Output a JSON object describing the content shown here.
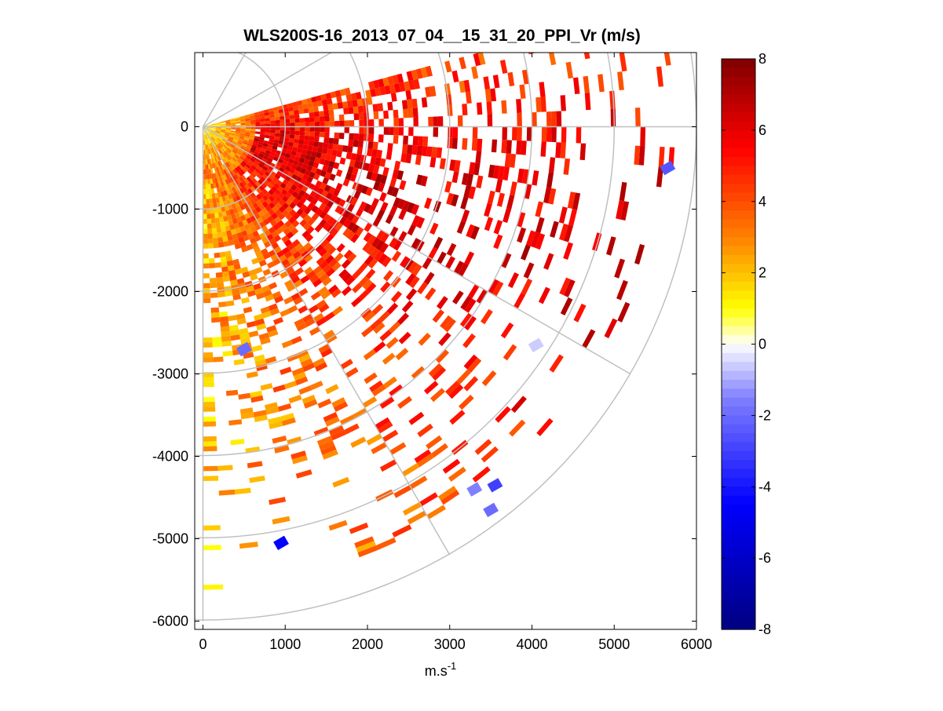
{
  "chart_data": {
    "type": "heatmap",
    "subtype": "ppi_radar_scan",
    "title": "WLS200S-16_2013_07_04__15_31_20_PPI_Vr (m/s)",
    "xlabel": "m.s",
    "xlabel_superscript": "-1",
    "ylabel": "",
    "xlim": [
      -100,
      6000
    ],
    "ylim": [
      -6100,
      900
    ],
    "xticks": [
      0,
      1000,
      2000,
      3000,
      4000,
      5000,
      6000
    ],
    "yticks": [
      0,
      -1000,
      -2000,
      -3000,
      -4000,
      -5000,
      -6000
    ],
    "xtick_labels": [
      "0",
      "1000",
      "2000",
      "3000",
      "4000",
      "5000",
      "6000"
    ],
    "ytick_labels": [
      "0",
      "-1000",
      "-2000",
      "-3000",
      "-4000",
      "-5000",
      "-6000"
    ],
    "grid": {
      "range_rings_m": [
        1000,
        2000,
        3000,
        4000,
        5000,
        6000
      ],
      "azimuth_spokes_deg": [
        0,
        -30,
        -60,
        -90,
        30,
        60
      ]
    },
    "colorbar": {
      "min": -8,
      "max": 8,
      "ticks": [
        8,
        6,
        4,
        2,
        0,
        -2,
        -4,
        -6,
        -8
      ],
      "tick_labels": [
        "8",
        "6",
        "4",
        "2",
        "0",
        "-2",
        "-4",
        "-6",
        "-8"
      ],
      "colormap": "blue-white-yellow-red",
      "stops": [
        "#000080",
        "#0000ff",
        "#8080ff",
        "#ffffff",
        "#ffff00",
        "#ff8000",
        "#ff0000",
        "#800000"
      ]
    },
    "scan_sector_deg": [
      -90,
      15
    ],
    "scan_max_range_m": 5700,
    "field": {
      "description": "radial velocity Vr (m/s) per range gate and azimuth",
      "sector_velocity_trend": [
        {
          "azimuth_deg": 10,
          "mean_vr": 4.5
        },
        {
          "azimuth_deg": 0,
          "mean_vr": 5.5
        },
        {
          "azimuth_deg": -15,
          "mean_vr": 6.2
        },
        {
          "azimuth_deg": -30,
          "mean_vr": 5.8
        },
        {
          "azimuth_deg": -45,
          "mean_vr": 4.8
        },
        {
          "azimuth_deg": -60,
          "mean_vr": 3.8
        },
        {
          "azimuth_deg": -75,
          "mean_vr": 3.0
        },
        {
          "azimuth_deg": -88,
          "mean_vr": 2.0
        }
      ],
      "near_field_vr_range": [
        0.5,
        2.5
      ],
      "negative_outliers": [
        {
          "x": 5650,
          "y": -500,
          "vr": -2.5
        },
        {
          "x": 3300,
          "y": -4400,
          "vr": -1.5
        },
        {
          "x": 3550,
          "y": -4350,
          "vr": -3.0
        },
        {
          "x": 3500,
          "y": -4650,
          "vr": -2.0
        },
        {
          "x": 950,
          "y": -5050,
          "vr": -4.5
        },
        {
          "x": 4050,
          "y": -2650,
          "vr": -0.6
        },
        {
          "x": 500,
          "y": -2700,
          "vr": -2.0
        }
      ]
    }
  }
}
